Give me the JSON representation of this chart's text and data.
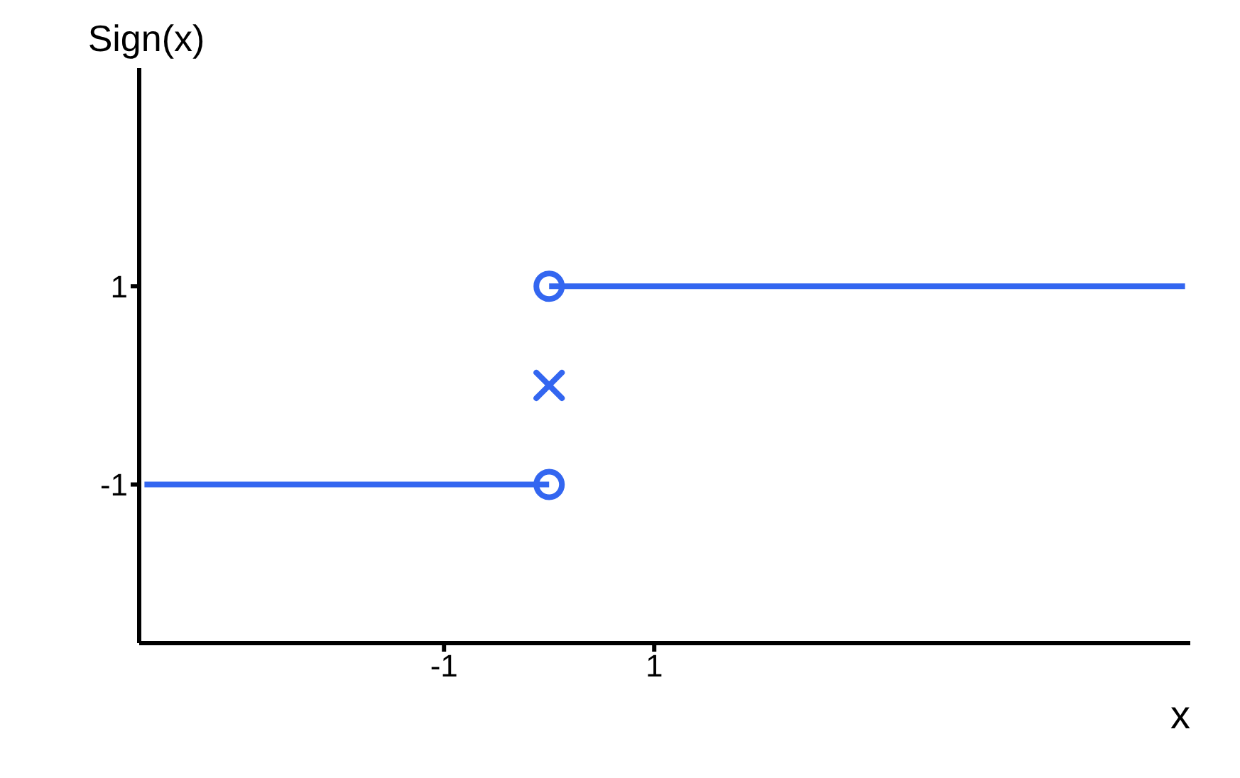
{
  "chart_data": {
    "type": "line",
    "xlabel": "x",
    "ylabel": "Sign(x)",
    "series": [
      {
        "color": "#3366f0",
        "x": [
          -3.85,
          0
        ],
        "values": [
          -1,
          -1
        ]
      },
      {
        "color": "#3366f0",
        "x": [
          0,
          6.05
        ],
        "values": [
          1,
          1
        ]
      },
      {
        "type": "scatter",
        "marker": "circle",
        "color": "#3366f0",
        "x": [
          0,
          0
        ],
        "values": [
          1,
          -1
        ]
      },
      {
        "type": "scatter",
        "marker": "cross",
        "color": "#3366f0",
        "x": [
          0
        ],
        "values": [
          0
        ]
      }
    ],
    "xlim": [
      -3.9,
      6.1
    ],
    "xticks": [
      {
        "value": -1,
        "label": "-1"
      },
      1
    ],
    "ylim": [
      -2.6,
      3.2
    ],
    "yticks": [
      {
        "value": -1,
        "label": "-1"
      },
      1
    ],
    "grid": false
  }
}
